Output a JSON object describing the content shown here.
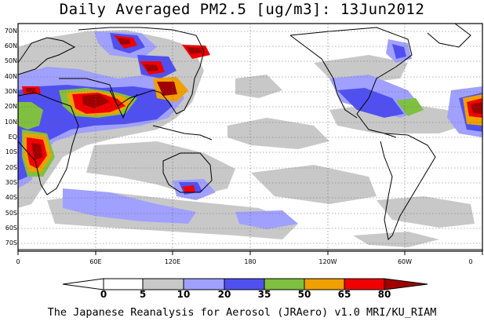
{
  "title": "Daily Averaged PM2.5 [ug/m3]: 13Jun2012",
  "footer": "The Japanese Reanalysis for Aerosol (JRAero) v1.0 MRI/KU_RIAM",
  "map": {
    "region": "global, 0E to 360E, 75S to 75N",
    "projection": "cylindrical equidistant",
    "lat_labels": [
      "70N",
      "60N",
      "50N",
      "40N",
      "30N",
      "20N",
      "10N",
      "EQ",
      "10S",
      "20S",
      "30S",
      "40S",
      "50S",
      "60S",
      "70S"
    ],
    "lon_labels": [
      "0",
      "60E",
      "120E",
      "180",
      "120W",
      "60W",
      "0"
    ],
    "gridlines": "dotted",
    "background": "#ffffff",
    "coastline_color": "#000000"
  },
  "colorbar": {
    "levels": [
      "0",
      "5",
      "10",
      "20",
      "35",
      "50",
      "65",
      "80"
    ],
    "colors": [
      "#ffffff",
      "#c8c8c8",
      "#a0a0ff",
      "#5050f0",
      "#80c040",
      "#f0a000",
      "#f00000",
      "#a00000"
    ],
    "extend": "both"
  }
}
